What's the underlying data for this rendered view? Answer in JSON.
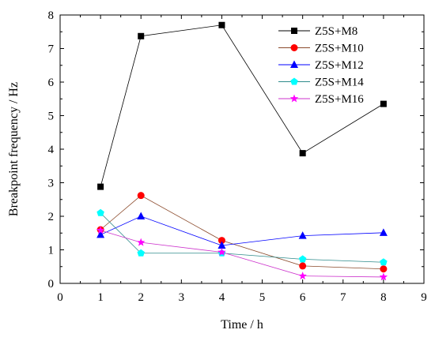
{
  "chart_data": {
    "type": "line",
    "xlabel": "Time / h",
    "ylabel": "Breakpoint frequency / Hz",
    "xlim": [
      0,
      9
    ],
    "ylim": [
      0,
      8
    ],
    "xticks": [
      "0",
      "1",
      "2",
      "3",
      "4",
      "5",
      "6",
      "7",
      "8",
      "9"
    ],
    "yticks": [
      "0",
      "1",
      "2",
      "3",
      "4",
      "5",
      "6",
      "7",
      "8"
    ],
    "grid": false,
    "legend_position": "top-right",
    "x": [
      1,
      2,
      4,
      6,
      8
    ],
    "series": [
      {
        "name": "Z5S+M8",
        "marker": "square",
        "color": "#000000",
        "line_color": "#000000",
        "values": [
          2.88,
          7.37,
          7.7,
          3.88,
          5.35
        ]
      },
      {
        "name": "Z5S+M10",
        "marker": "circle",
        "color": "#ff0000",
        "line_color": "#8b4a2b",
        "values": [
          1.6,
          2.62,
          1.28,
          0.52,
          0.43
        ]
      },
      {
        "name": "Z5S+M12",
        "marker": "triangle",
        "color": "#0000ff",
        "line_color": "#0000ff",
        "values": [
          1.45,
          2.0,
          1.13,
          1.42,
          1.51
        ]
      },
      {
        "name": "Z5S+M14",
        "marker": "pentagon",
        "color": "#00ffff",
        "line_color": "#2e8b8b",
        "values": [
          2.1,
          0.9,
          0.9,
          0.72,
          0.63
        ]
      },
      {
        "name": "Z5S+M16",
        "marker": "star",
        "color": "#ff00ff",
        "line_color": "#cc33cc",
        "values": [
          1.58,
          1.22,
          0.93,
          0.22,
          0.19
        ]
      }
    ]
  }
}
